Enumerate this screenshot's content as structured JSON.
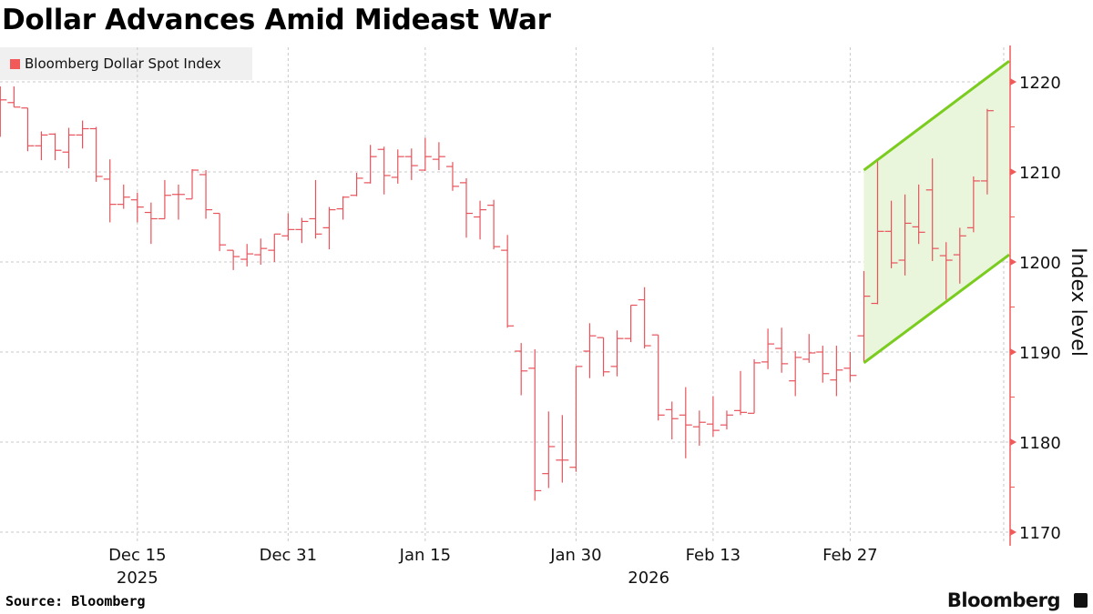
{
  "title": "Dollar Advances Amid Mideast War",
  "source": "Source: Bloomberg",
  "brand": "Bloomberg",
  "colors": {
    "bar": "#e8535b",
    "axis": "#f25a5a",
    "channel_line": "#7acc1e",
    "channel_fill": "#eaf6dc",
    "legend_bg": "#f0f0f0",
    "grid": "#c8c8c8"
  },
  "chart_data": {
    "type": "ohlc",
    "title": "Dollar Advances Amid Mideast War",
    "legend": [
      {
        "label": "Bloomberg Dollar Spot Index",
        "color": "#f25a5a"
      }
    ],
    "legend_placement": "top-left",
    "ylabel": "Index level",
    "ylim": [
      1168,
      1223
    ],
    "yticks": [
      1220,
      1210,
      1200,
      1190,
      1180,
      1170
    ],
    "grid": true,
    "x_ticks": [
      {
        "bar": 10,
        "label": "Dec 15",
        "sublabel": "2025"
      },
      {
        "bar": 21,
        "label": "Dec 31",
        "sublabel": ""
      },
      {
        "bar": 31,
        "label": "Jan 15",
        "sublabel": ""
      },
      {
        "bar": 42,
        "label": "Jan 30",
        "sublabel": ""
      },
      {
        "bar": 52,
        "label": "Feb 13",
        "sublabel": ""
      },
      {
        "bar": 62,
        "label": "Feb 27",
        "sublabel": ""
      },
      {
        "bar": 73.2,
        "label": "",
        "sublabel": ""
      }
    ],
    "year_label_2026": {
      "bar": 47.3,
      "label": "2026"
    },
    "ohlc": [
      [
        null,
        1219.5,
        1213.9,
        1218.0
      ],
      [
        1217.7,
        1219.5,
        1217.2,
        1217.2
      ],
      [
        1217.1,
        1217.1,
        1212.3,
        1212.9
      ],
      [
        1212.9,
        1214.5,
        1211.3,
        1214.1
      ],
      [
        1214.2,
        1214.3,
        1211.3,
        1212.4
      ],
      [
        1212.2,
        1214.9,
        1210.4,
        1214.1
      ],
      [
        1214.1,
        1215.7,
        1212.6,
        1214.8
      ],
      [
        1214.8,
        1215.0,
        1208.9,
        1209.5
      ],
      [
        1209.2,
        1211.4,
        1204.4,
        1206.4
      ],
      [
        1206.4,
        1208.6,
        1205.9,
        1207.2
      ],
      [
        1206.9,
        1207.7,
        1204.4,
        1206.1
      ],
      [
        1205.5,
        1206.6,
        1202.0,
        1204.8
      ],
      [
        1204.8,
        1209.1,
        1204.8,
        1207.4
      ],
      [
        1207.5,
        1208.6,
        1204.7,
        1207.5
      ],
      [
        1207.0,
        1210.3,
        1207.0,
        1210.2
      ],
      [
        1209.7,
        1210.2,
        1204.8,
        1205.8
      ],
      [
        1205.4,
        1205.4,
        1201.2,
        1201.9
      ],
      [
        1201.3,
        1201.3,
        1199.1,
        1200.6
      ],
      [
        1200.3,
        1202.0,
        1199.5,
        1200.9
      ],
      [
        1200.8,
        1202.6,
        1199.7,
        1201.5
      ],
      [
        1201.3,
        1203.1,
        1200.0,
        1203.1
      ],
      [
        1202.9,
        1205.4,
        1202.4,
        1203.6
      ],
      [
        1203.6,
        1204.9,
        1202.1,
        1204.5
      ],
      [
        1204.8,
        1209.1,
        1202.6,
        1203.1
      ],
      [
        1203.8,
        1206.1,
        1201.4,
        1205.8
      ],
      [
        1205.9,
        1207.3,
        1204.7,
        1207.2
      ],
      [
        1207.4,
        1209.9,
        1207.3,
        1209.3
      ],
      [
        1208.8,
        1213.0,
        1208.7,
        1211.7
      ],
      [
        1212.5,
        1212.8,
        1207.5,
        1209.6
      ],
      [
        1209.4,
        1212.5,
        1208.7,
        1211.7
      ],
      [
        1211.7,
        1212.6,
        1209.1,
        1210.7
      ],
      [
        1210.2,
        1213.8,
        1210.1,
        1211.7
      ],
      [
        1211.4,
        1213.3,
        1210.2,
        1211.7
      ],
      [
        1210.6,
        1211.1,
        1207.9,
        1208.4
      ],
      [
        1208.8,
        1209.3,
        1202.7,
        1205.4
      ],
      [
        1205.0,
        1206.8,
        1202.5,
        1205.8
      ],
      [
        1206.3,
        1206.9,
        1201.4,
        1201.7
      ],
      [
        1201.3,
        1203.0,
        1192.7,
        1192.9
      ],
      [
        1190.1,
        1191.0,
        1185.2,
        1187.9
      ],
      [
        1188.2,
        1190.3,
        1173.5,
        1174.6
      ],
      [
        1176.5,
        1183.4,
        1174.9,
        1179.5
      ],
      [
        1178.0,
        1183.0,
        1175.5,
        1178.0
      ],
      [
        1177.2,
        1188.4,
        1176.7,
        1188.4
      ],
      [
        1190.1,
        1193.2,
        1187.1,
        1191.8
      ],
      [
        1191.6,
        1191.6,
        1187.3,
        1187.8
      ],
      [
        1188.4,
        1192.4,
        1187.3,
        1191.5
      ],
      [
        1191.5,
        1195.2,
        1191.1,
        1195.2
      ],
      [
        1195.8,
        1197.2,
        1190.4,
        1190.7
      ],
      [
        1191.9,
        1191.9,
        1182.4,
        1183.0
      ],
      [
        1183.6,
        1184.5,
        1180.3,
        1182.6
      ],
      [
        1183.0,
        1186.1,
        1178.2,
        1181.9
      ],
      [
        1181.7,
        1183.5,
        1179.6,
        1182.2
      ],
      [
        1182.0,
        1185.1,
        1180.6,
        1181.3
      ],
      [
        1181.9,
        1183.5,
        1181.4,
        1183.0
      ],
      [
        1183.5,
        1187.9,
        1183.0,
        1183.3
      ],
      [
        1183.2,
        1189.2,
        1183.2,
        1188.8
      ],
      [
        1188.9,
        1192.6,
        1188.1,
        1190.9
      ],
      [
        1190.4,
        1192.7,
        1187.7,
        1188.7
      ],
      [
        1186.8,
        1190.1,
        1185.1,
        1189.4
      ],
      [
        1189.2,
        1192.0,
        1188.8,
        1189.9
      ],
      [
        1190.0,
        1190.7,
        1186.6,
        1187.6
      ],
      [
        1186.9,
        1190.7,
        1185.1,
        1188.0
      ],
      [
        1188.2,
        1190.0,
        1186.7,
        1187.4
      ],
      [
        1191.8,
        1199.0,
        1188.9,
        1196.2
      ],
      [
        1195.4,
        1211.2,
        1195.3,
        1203.4
      ],
      [
        1203.4,
        1206.8,
        1199.3,
        1199.9
      ],
      [
        1200.2,
        1207.5,
        1198.5,
        1204.3
      ],
      [
        1203.9,
        1208.6,
        1202.0,
        1203.3
      ],
      [
        1208.0,
        1211.5,
        1200.1,
        1201.5
      ],
      [
        1200.7,
        1202.2,
        1195.8,
        1200.2
      ],
      [
        1200.8,
        1203.8,
        1197.6,
        1202.9
      ],
      [
        1203.8,
        1209.5,
        1203.3,
        1209.0
      ],
      [
        1209.0,
        1217.0,
        1207.5,
        1216.8
      ]
    ],
    "channel": {
      "x_bars": [
        63,
        73.6
      ],
      "upper": [
        1210.2,
        1222.3
      ],
      "lower": [
        1188.8,
        1200.8
      ]
    }
  }
}
